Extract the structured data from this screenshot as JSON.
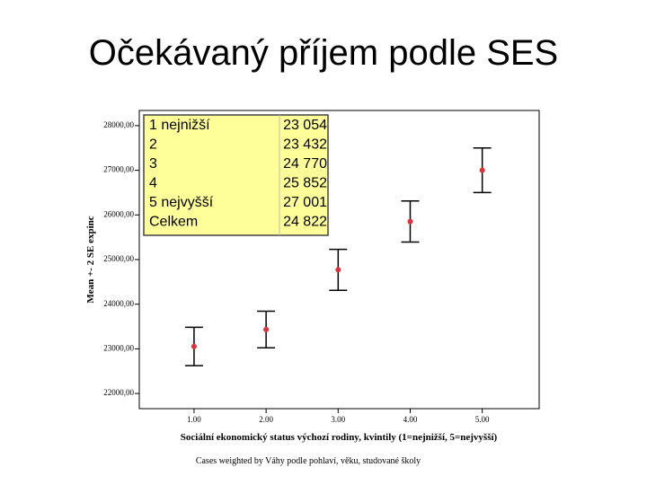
{
  "chart_data": {
    "type": "errorbar",
    "title": "Očekávaný příjem podle SES",
    "y_label": "Mean +- 2 SE expinc",
    "x_label": "Sociální ekonomický status výchozí rodiny, kvintily (1=nejnižší, 5=nejvyšší)",
    "note": "Cases weighted by Váhy podle pohlaví, věku, studované školy",
    "x": [
      1,
      2,
      3,
      4,
      5
    ],
    "values": [
      23054,
      23432,
      24770,
      25852,
      27001
    ],
    "errors": [
      430,
      410,
      460,
      460,
      500
    ],
    "color": "#e0303a",
    "xlim": [
      0.24,
      5.79
    ],
    "xticks": [
      {
        "value": 1,
        "label": "1.00"
      },
      {
        "value": 2,
        "label": "2.00"
      },
      {
        "value": 3,
        "label": "3.00"
      },
      {
        "value": 4,
        "label": "4.00"
      },
      {
        "value": 5,
        "label": "5.00"
      }
    ],
    "ylim": [
      21660,
      28340
    ],
    "yticks": [
      {
        "value": 22000,
        "label": "22000,00"
      },
      {
        "value": 23000,
        "label": "23000,00"
      },
      {
        "value": 24000,
        "label": "24000,00"
      },
      {
        "value": 25000,
        "label": "25000,00"
      },
      {
        "value": 26000,
        "label": "26000,00"
      },
      {
        "value": 27000,
        "label": "27000,00"
      },
      {
        "value": 28000,
        "label": "28000,00"
      }
    ],
    "table": {
      "rows": [
        [
          "1 nejnižší",
          "23 054"
        ],
        [
          "2",
          "23 432"
        ],
        [
          "3",
          "24 770"
        ],
        [
          "4",
          "25 852"
        ],
        [
          "5 nejvyšší",
          "27 001"
        ],
        [
          "Celkem",
          "24 822"
        ]
      ]
    }
  }
}
